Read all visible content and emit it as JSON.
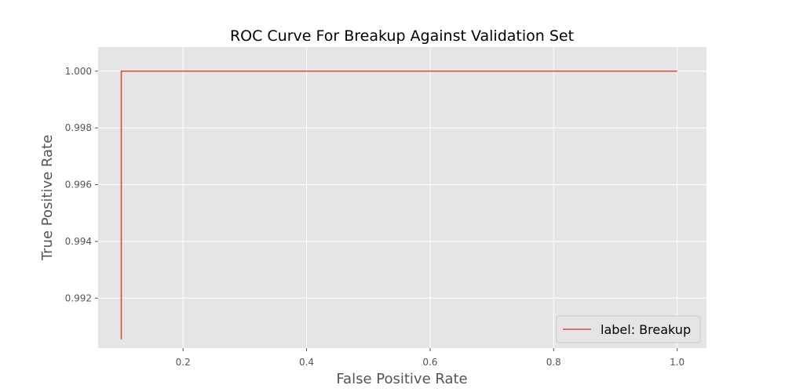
{
  "chart_data": {
    "type": "line",
    "title": "ROC Curve For Breakup Against Validation Set",
    "xlabel": "False Positive Rate",
    "ylabel": "True Positive Rate",
    "xlim": [
      0.0625,
      1.0475
    ],
    "ylim": [
      0.99024,
      1.00085
    ],
    "x_ticks": [
      0.2,
      0.4,
      0.6,
      0.8,
      1.0
    ],
    "x_tick_labels": [
      "0.2",
      "0.4",
      "0.6",
      "0.8",
      "1.0"
    ],
    "y_ticks": [
      0.992,
      0.994,
      0.996,
      0.998,
      1.0
    ],
    "y_tick_labels": [
      "0.992",
      "0.994",
      "0.996",
      "0.998",
      "1.000"
    ],
    "grid": true,
    "legend_position": "lower-right",
    "series": [
      {
        "name": "label: Breakup",
        "color": "#e24a33",
        "x": [
          0.1,
          0.1,
          1.0
        ],
        "y": [
          0.99055,
          1.0,
          1.0
        ]
      }
    ],
    "colors": {
      "plot_background": "#e5e5e5",
      "grid": "#ffffff",
      "tick_text": "#555555"
    }
  }
}
